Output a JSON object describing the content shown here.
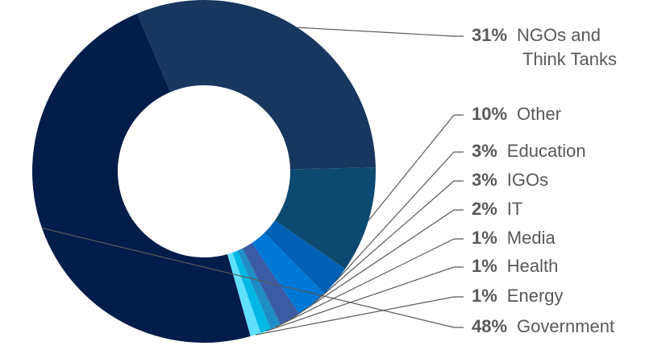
{
  "chart_data": {
    "type": "pie",
    "variant": "donut",
    "legend_placement": "right",
    "slices": [
      {
        "label": "NGOs and Think Tanks",
        "pct_text": "31%",
        "value": 31,
        "color": "#17375e"
      },
      {
        "label": "Other",
        "pct_text": "10%",
        "value": 10,
        "color": "#0d4a71"
      },
      {
        "label": "Education",
        "pct_text": "3%",
        "value": 3,
        "color": "#0060b4"
      },
      {
        "label": "IGOs",
        "pct_text": "3%",
        "value": 3,
        "color": "#0078d7"
      },
      {
        "label": "IT",
        "pct_text": "2%",
        "value": 2,
        "color": "#3b5ba5"
      },
      {
        "label": "Media",
        "pct_text": "1%",
        "value": 1,
        "color": "#1f8ec6"
      },
      {
        "label": "Health",
        "pct_text": "1%",
        "value": 1,
        "color": "#00b8e6"
      },
      {
        "label": "Energy",
        "pct_text": "1%",
        "value": 1,
        "color": "#5fe0ff"
      },
      {
        "label": "Government",
        "pct_text": "48%",
        "value": 48,
        "color": "#021d4a"
      }
    ]
  },
  "legend": {
    "ngos_line1": "NGOs and",
    "ngos_line2": "Think Tanks"
  }
}
